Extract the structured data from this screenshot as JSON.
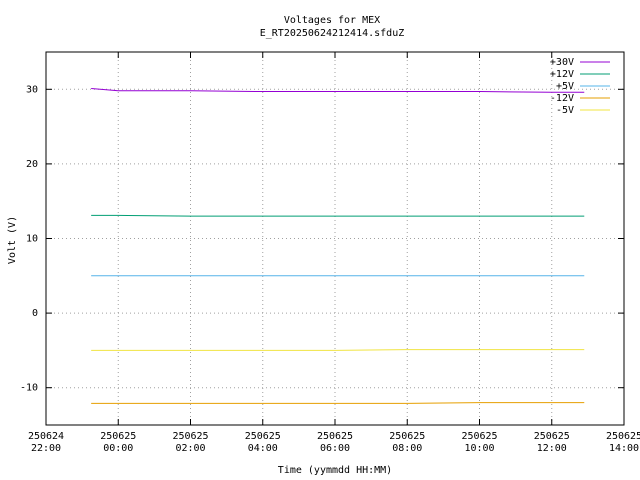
{
  "chart_data": {
    "type": "line",
    "title": "Voltages for MEX",
    "subtitle": "E_RT20250624212414.sfduZ",
    "x_label": "Time (yymmdd HH:MM)",
    "y_label": "Volt (V)",
    "x": [
      23.25,
      24,
      26,
      28,
      30,
      32,
      34,
      36,
      36.9
    ],
    "series": [
      {
        "name": "+30V",
        "color": "#9400d3",
        "values": [
          30.1,
          29.8,
          29.8,
          29.7,
          29.7,
          29.7,
          29.7,
          29.6,
          29.6
        ]
      },
      {
        "name": "+12V",
        "color": "#009e73",
        "values": [
          13.1,
          13.1,
          13.0,
          13.0,
          13.0,
          13.0,
          13.0,
          13.0,
          13.0
        ]
      },
      {
        "name": "+5V",
        "color": "#56b4e9",
        "values": [
          5.0,
          5.0,
          5.0,
          5.0,
          5.0,
          5.0,
          5.0,
          5.0,
          5.0
        ]
      },
      {
        "name": "-12V",
        "color": "#e69f00",
        "values": [
          -12.1,
          -12.1,
          -12.1,
          -12.1,
          -12.1,
          -12.1,
          -12.0,
          -12.0,
          -12.0
        ]
      },
      {
        "name": "-5V",
        "color": "#f0e442",
        "values": [
          -5.0,
          -5.0,
          -5.0,
          -5.0,
          -5.0,
          -4.9,
          -4.9,
          -4.9,
          -4.9
        ]
      }
    ],
    "xlim": [
      22,
      38
    ],
    "xticks": [
      {
        "value": 22,
        "label": "250624\n22:00"
      },
      {
        "value": 24,
        "label": "250625\n00:00"
      },
      {
        "value": 26,
        "label": "250625\n02:00"
      },
      {
        "value": 28,
        "label": "250625\n04:00"
      },
      {
        "value": 30,
        "label": "250625\n06:00"
      },
      {
        "value": 32,
        "label": "250625\n08:00"
      },
      {
        "value": 34,
        "label": "250625\n10:00"
      },
      {
        "value": 36,
        "label": "250625\n12:00"
      },
      {
        "value": 38,
        "label": "250625\n14:00"
      }
    ],
    "ylim": [
      -15,
      35
    ],
    "yticks": [
      -10,
      0,
      10,
      20,
      30
    ],
    "grid": true,
    "legend": "top-right"
  }
}
